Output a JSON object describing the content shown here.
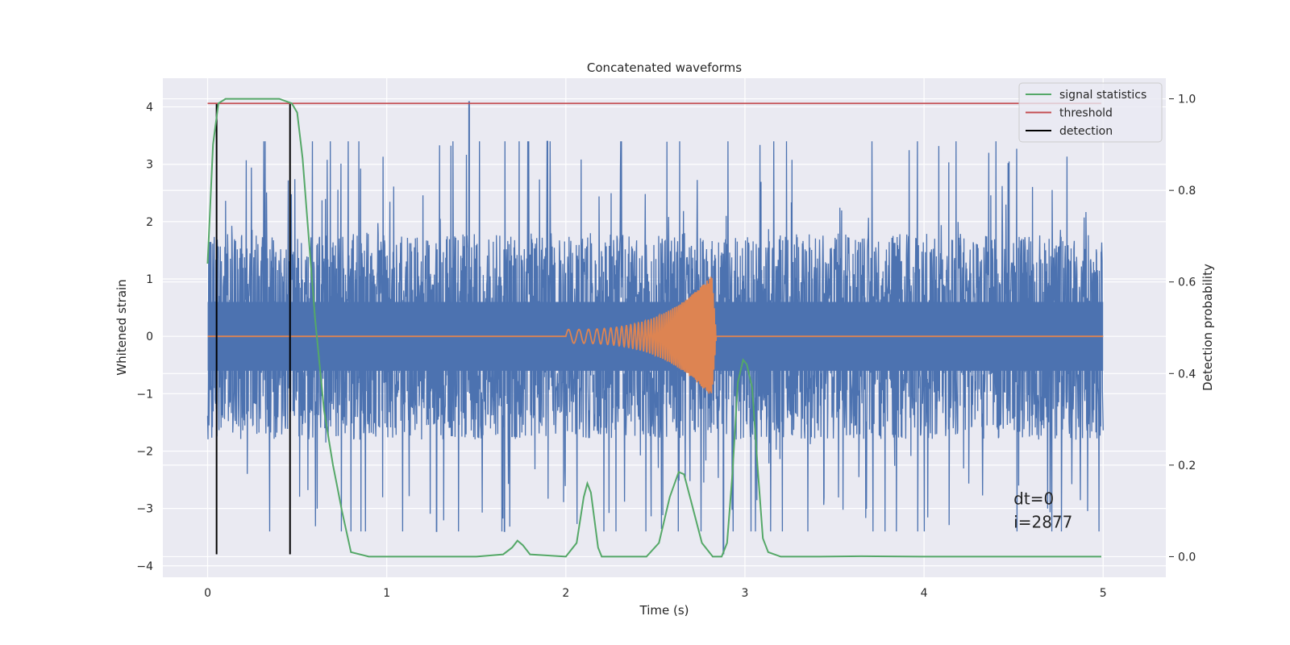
{
  "chart_data": {
    "type": "line",
    "title": "Concatenated waveforms",
    "xlabel": "Time (s)",
    "ylabel": "Whitened strain",
    "y2label": "Detection probability",
    "xlim": [
      -0.25,
      5.35
    ],
    "ylim": [
      -4.2,
      4.5
    ],
    "y2lim": [
      -0.045,
      1.045
    ],
    "xticks": [
      0,
      1,
      2,
      3,
      4,
      5
    ],
    "yticks": [
      -4,
      -3,
      -2,
      -1,
      0,
      1,
      2,
      3,
      4
    ],
    "y2ticks": [
      "0.0",
      "0.2",
      "0.4",
      "0.6",
      "0.8",
      "1.0"
    ],
    "grid": true,
    "legend_position": "top-right",
    "colors": {
      "noise": "#4c72b0",
      "signal": "#dd8452",
      "statistics": "#55a868",
      "threshold": "#c44e52",
      "detection": "#000000",
      "background": "#eaeaf2",
      "grid": "#ffffff"
    },
    "series": [
      {
        "name": "signal statistics",
        "axis": "right",
        "x": [
          0,
          0.03,
          0.06,
          0.1,
          0.2,
          0.4,
          0.47,
          0.5,
          0.53,
          0.56,
          0.6,
          0.65,
          0.7,
          0.72,
          0.75,
          0.8,
          0.9,
          1.5,
          1.65,
          1.7,
          1.73,
          1.76,
          1.8,
          2.0,
          2.06,
          2.1,
          2.12,
          2.14,
          2.18,
          2.2,
          2.45,
          2.52,
          2.58,
          2.63,
          2.66,
          2.7,
          2.76,
          2.82,
          2.87,
          2.9,
          2.93,
          2.96,
          2.99,
          3.01,
          3.04,
          3.07,
          3.1,
          3.13,
          3.2,
          3.4,
          3.65,
          4.0,
          4.5,
          4.99
        ],
        "y": [
          0.64,
          0.9,
          0.99,
          1.0,
          1.0,
          1.0,
          0.99,
          0.97,
          0.87,
          0.72,
          0.52,
          0.32,
          0.2,
          0.16,
          0.1,
          0.01,
          0.0,
          0.0,
          0.005,
          0.02,
          0.035,
          0.025,
          0.005,
          0.0,
          0.03,
          0.13,
          0.16,
          0.14,
          0.02,
          0.0,
          0.0,
          0.03,
          0.13,
          0.185,
          0.18,
          0.12,
          0.03,
          0.0,
          0.0,
          0.03,
          0.18,
          0.38,
          0.43,
          0.42,
          0.37,
          0.2,
          0.04,
          0.01,
          0.0,
          0.0,
          0.001,
          0.0,
          0.0,
          0.0
        ]
      },
      {
        "name": "threshold",
        "axis": "right",
        "x": [
          0,
          4.99
        ],
        "y": [
          0.99,
          0.99
        ]
      },
      {
        "name": "detection",
        "axis": "left",
        "x_positions": [
          0.05,
          0.46
        ],
        "y_range": [
          -3.8,
          4.05
        ]
      }
    ],
    "noise": {
      "x_range": [
        0,
        5.0
      ],
      "envelope_mean": 1.2,
      "spike_max": 4.1,
      "spike_min": -3.8
    },
    "chirp": {
      "x_start": 2.0,
      "x_end": 2.84,
      "amp_start": 0.12,
      "amp_peak": 1.15,
      "amp_min": -1.1
    },
    "annotations": [
      "dt=0",
      "i=2877"
    ]
  }
}
